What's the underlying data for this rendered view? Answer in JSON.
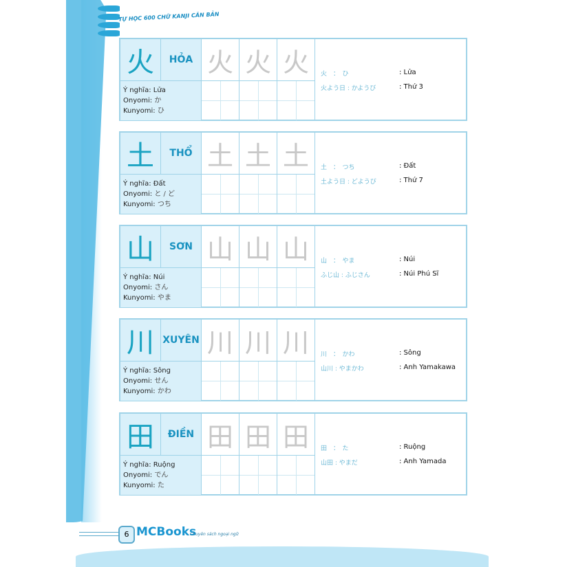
{
  "header": {
    "title": "TỰ HỌC 600 CHỮ KANJI CĂN BẢN"
  },
  "labels": {
    "meaning": "Ý nghĩa:",
    "onyomi": "Onyomi:",
    "kunyomi": "Kunyomi:"
  },
  "entries": [
    {
      "kanji": "火",
      "reading": "HỎA",
      "meaning": "Lửa",
      "onyomi": "か",
      "kunyomi": "ひ",
      "examples": [
        {
          "jp": "火　：　ひ",
          "vi": ": Lửa"
        },
        {
          "jp": "火よう日 : かようび",
          "vi": ": Thứ 3"
        }
      ]
    },
    {
      "kanji": "土",
      "reading": "THỔ",
      "meaning": "Đất",
      "onyomi": "と / ど",
      "kunyomi": "つち",
      "examples": [
        {
          "jp": "土　：　つち",
          "vi": ": Đất"
        },
        {
          "jp": "土よう日 : どようび",
          "vi": ": Thứ 7"
        }
      ]
    },
    {
      "kanji": "山",
      "reading": "SƠN",
      "meaning": "Núi",
      "onyomi": "さん",
      "kunyomi": "やま",
      "examples": [
        {
          "jp": "山　：　やま",
          "vi": ": Núi"
        },
        {
          "jp": "ふじ山 : ふじさん",
          "vi": ": Núi Phú Sĩ"
        }
      ]
    },
    {
      "kanji": "川",
      "reading": "XUYÊN",
      "meaning": "Sông",
      "onyomi": "せん",
      "kunyomi": "かわ",
      "examples": [
        {
          "jp": "川　：　かわ",
          "vi": ": Sông"
        },
        {
          "jp": "山川 : やまかわ",
          "vi": ": Anh Yamakawa"
        }
      ]
    },
    {
      "kanji": "田",
      "reading": "ĐIỀN",
      "meaning": "Ruộng",
      "onyomi": "でん",
      "kunyomi": "た",
      "examples": [
        {
          "jp": "田　：　た",
          "vi": ": Ruộng"
        },
        {
          "jp": "山田 : やまだ",
          "vi": ": Anh Yamada"
        }
      ]
    }
  ],
  "footer": {
    "page": "6",
    "brand": "MCBooks",
    "slogan": "Chuyên sách ngoại ngữ"
  }
}
